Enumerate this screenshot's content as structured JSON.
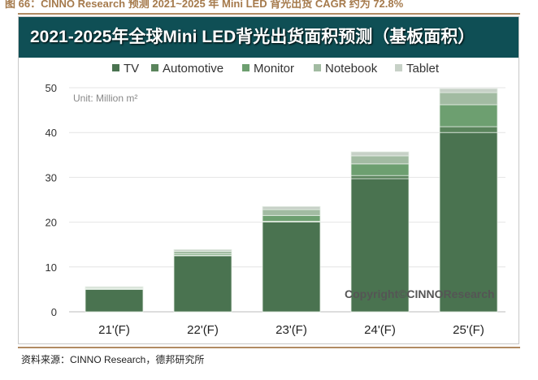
{
  "caption": "图 66：CINNO Research 预测 2021~2025 年 Mini LED 背光出货 CAGR 约为 72.8%",
  "source": "资料来源：CINNO Research，德邦研究所",
  "colors": {
    "header_bg": "#0f4f55",
    "rule": "#b08a62"
  },
  "chart_data": {
    "type": "bar",
    "stacked": true,
    "title": "2021-2025年全球Mini LED背光出货面积预测（基板面积）",
    "unit_label": "Unit: Million m²",
    "watermark": "Copyright©CINNOResearch",
    "categories": [
      "21'(F)",
      "22'(F)",
      "23'(F)",
      "24'(F)",
      "25'(F)"
    ],
    "ylim": [
      0,
      50
    ],
    "yticks": [
      0,
      10,
      20,
      30,
      40,
      50
    ],
    "grid": true,
    "legend_position": "top",
    "series": [
      {
        "name": "TV",
        "color": "#4a7350",
        "values": [
          5.0,
          12.5,
          20.0,
          29.7,
          40.0
        ]
      },
      {
        "name": "Automotive",
        "color": "#5a845c",
        "values": [
          0.1,
          0.1,
          0.2,
          0.7,
          1.3
        ]
      },
      {
        "name": "Monitor",
        "color": "#6d9f70",
        "values": [
          0.1,
          0.3,
          1.3,
          2.6,
          4.9
        ]
      },
      {
        "name": "Notebook",
        "color": "#a2bba2",
        "values": [
          0.2,
          0.6,
          1.3,
          1.8,
          2.7
        ]
      },
      {
        "name": "Tablet",
        "color": "#c7d1c7",
        "values": [
          0.2,
          0.4,
          0.7,
          0.9,
          0.9
        ]
      }
    ]
  }
}
